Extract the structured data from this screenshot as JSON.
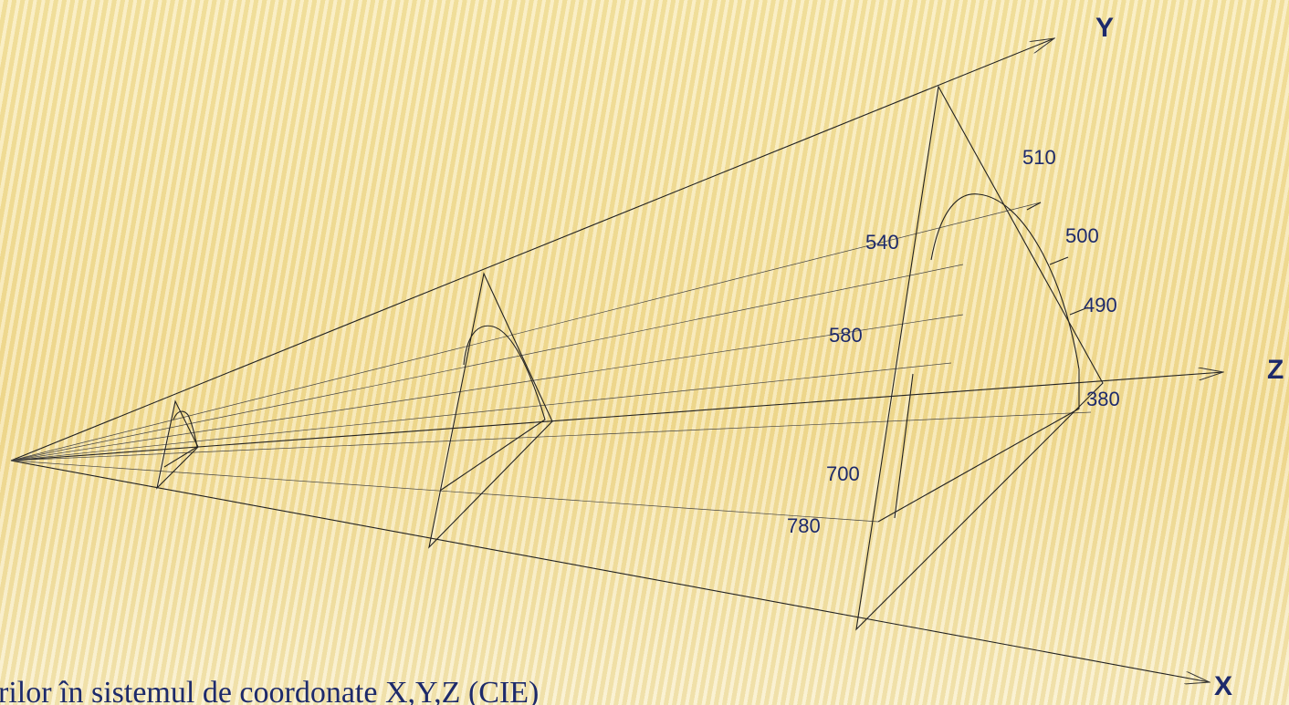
{
  "axes": {
    "y": "Y",
    "z": "Z",
    "x": "X"
  },
  "wavelengths": [
    "510",
    "500",
    "490",
    "540",
    "580",
    "380",
    "700",
    "780"
  ],
  "caption": "rilor în sistemul de coordonate X,Y,Z (CIE)"
}
